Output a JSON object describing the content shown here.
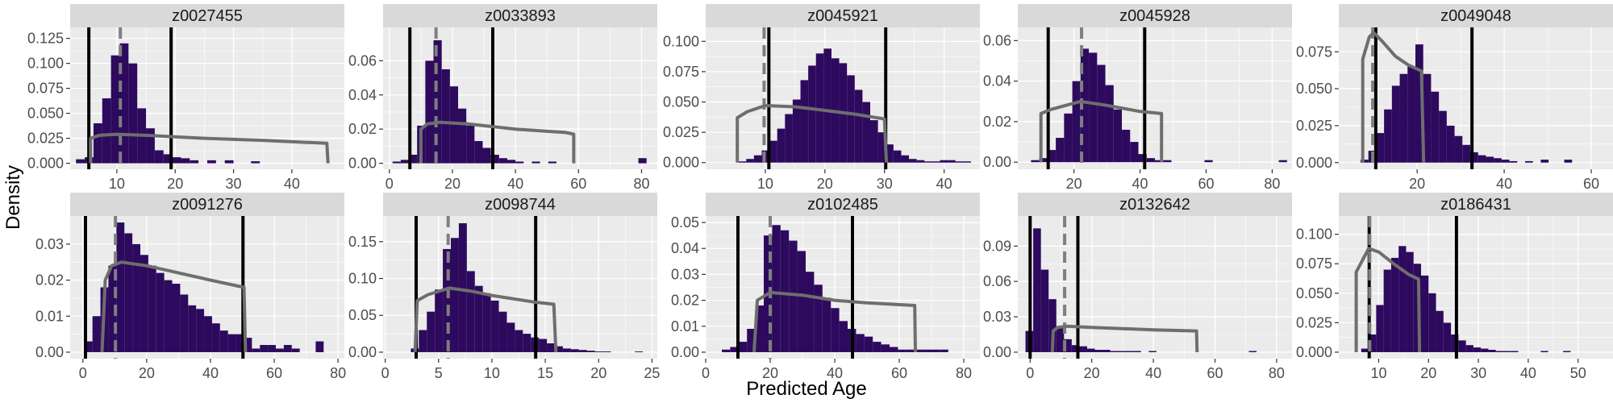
{
  "figure": {
    "ylabel": "Density",
    "xlabel": "Predicted Age",
    "colors": {
      "panel_bg": "#ebebeb",
      "strip_bg": "#d9d9d9",
      "grid": "#ffffff",
      "bars": "#2d0a5e",
      "ci_lines": "#000000",
      "prior_curve": "#6e6e6e",
      "median_line": "#7f7f7f"
    }
  },
  "chart_data": [
    {
      "type": "histogram",
      "title": "z0027455",
      "xlim": [
        2,
        49
      ],
      "ylim": [
        -0.006,
        0.136
      ],
      "xticks": [
        10,
        20,
        30,
        40
      ],
      "yticks": [
        0,
        0.025,
        0.05,
        0.075,
        0.1,
        0.125
      ],
      "ytick_labels": [
        "0.000",
        "0.025",
        "0.050",
        "0.075",
        "0.100",
        "0.125"
      ],
      "bins_start": 3,
      "bin_width": 1.5,
      "values": [
        0.004,
        0.006,
        0.04,
        0.065,
        0.108,
        0.12,
        0.1,
        0.055,
        0.035,
        0.013,
        0.009,
        0.006,
        0.005,
        0.003,
        0,
        0.003,
        0,
        0.003,
        0,
        0,
        0.002,
        0,
        0,
        0,
        0,
        0,
        0,
        0,
        0
      ],
      "ci_lines": [
        5.2,
        19.3
      ],
      "median_line": 10.6,
      "prior_curve": [
        [
          5.5,
          0
        ],
        [
          5.5,
          0.025
        ],
        [
          7,
          0.028
        ],
        [
          10,
          0.029
        ],
        [
          15,
          0.028
        ],
        [
          25,
          0.025
        ],
        [
          35,
          0.023
        ],
        [
          46,
          0.02
        ],
        [
          46.2,
          0
        ]
      ]
    },
    {
      "type": "histogram",
      "title": "z0033893",
      "xlim": [
        -2,
        85
      ],
      "ylim": [
        -0.0035,
        0.0795
      ],
      "xticks": [
        0,
        20,
        40,
        60,
        80
      ],
      "yticks": [
        0,
        0.02,
        0.04,
        0.06
      ],
      "ytick_labels": [
        "0.00",
        "0.02",
        "0.04",
        "0.06"
      ],
      "bins_start": 1,
      "bin_width": 2.6,
      "values": [
        0.001,
        0.002,
        0.005,
        0.022,
        0.06,
        0.072,
        0.055,
        0.045,
        0.032,
        0.022,
        0.013,
        0.009,
        0.005,
        0.003,
        0.002,
        0.001,
        0,
        0.001,
        0,
        0.001,
        0,
        0,
        0,
        0,
        0,
        0,
        0,
        0,
        0,
        0,
        0.003
      ],
      "ci_lines": [
        6.5,
        32.8
      ],
      "median_line": 14.8,
      "prior_curve": [
        [
          10,
          0
        ],
        [
          10,
          0.02
        ],
        [
          12,
          0.023
        ],
        [
          16,
          0.024
        ],
        [
          25,
          0.023
        ],
        [
          40,
          0.02
        ],
        [
          56,
          0.018
        ],
        [
          58.5,
          0.017
        ],
        [
          58.5,
          0
        ]
      ]
    },
    {
      "type": "histogram",
      "title": "z0045921",
      "xlim": [
        0,
        46
      ],
      "ylim": [
        -0.0055,
        0.1115
      ],
      "xticks": [
        10,
        20,
        30,
        40
      ],
      "yticks": [
        0,
        0.025,
        0.05,
        0.075,
        0.1
      ],
      "ytick_labels": [
        "0.000",
        "0.025",
        "0.050",
        "0.075",
        "0.100"
      ],
      "bins_start": 5.5,
      "bin_width": 1.3,
      "values": [
        0.001,
        0.003,
        0.006,
        0.01,
        0.018,
        0.028,
        0.04,
        0.052,
        0.068,
        0.08,
        0.09,
        0.094,
        0.086,
        0.082,
        0.072,
        0.06,
        0.05,
        0.035,
        0.025,
        0.015,
        0.01,
        0.006,
        0.003,
        0.002,
        0.001,
        0.001,
        0.002,
        0.002,
        0.001,
        0.001
      ],
      "ci_lines": [
        10.6,
        30.2
      ],
      "median_line": 9.8,
      "prior_curve": [
        [
          5.3,
          0
        ],
        [
          5.3,
          0.037
        ],
        [
          7,
          0.042
        ],
        [
          10,
          0.047
        ],
        [
          15,
          0.046
        ],
        [
          20,
          0.043
        ],
        [
          25,
          0.04
        ],
        [
          30,
          0.036
        ],
        [
          30.3,
          0
        ]
      ]
    },
    {
      "type": "histogram",
      "title": "z0045928",
      "xlim": [
        3,
        86
      ],
      "ylim": [
        -0.0035,
        0.0665
      ],
      "xticks": [
        20,
        40,
        60,
        80
      ],
      "yticks": [
        0,
        0.02,
        0.04,
        0.06
      ],
      "ytick_labels": [
        "0.00",
        "0.02",
        "0.04",
        "0.06"
      ],
      "bins_start": 7,
      "bin_width": 2.5,
      "values": [
        0.001,
        0.002,
        0.006,
        0.012,
        0.024,
        0.04,
        0.056,
        0.054,
        0.048,
        0.038,
        0.026,
        0.016,
        0.01,
        0.004,
        0.002,
        0.001,
        0.001,
        0,
        0,
        0,
        0,
        0.001,
        0,
        0,
        0,
        0,
        0,
        0,
        0,
        0,
        0.001
      ],
      "ci_lines": [
        12.2,
        41.4
      ],
      "median_line": 22.3,
      "prior_curve": [
        [
          10,
          0
        ],
        [
          10,
          0.024
        ],
        [
          13,
          0.026
        ],
        [
          22,
          0.03
        ],
        [
          30,
          0.028
        ],
        [
          40,
          0.025
        ],
        [
          46.5,
          0.024
        ],
        [
          46.5,
          0
        ]
      ]
    },
    {
      "type": "histogram",
      "title": "z0049048",
      "xlim": [
        2,
        65
      ],
      "ylim": [
        -0.0045,
        0.0915
      ],
      "xticks": [
        20,
        40,
        60
      ],
      "yticks": [
        0,
        0.025,
        0.05,
        0.075
      ],
      "ytick_labels": [
        "0.000",
        "0.025",
        "0.050",
        "0.075"
      ],
      "bins_start": 7,
      "bin_width": 1.8,
      "values": [
        0.002,
        0.008,
        0.02,
        0.036,
        0.052,
        0.06,
        0.065,
        0.08,
        0.06,
        0.048,
        0.035,
        0.025,
        0.018,
        0.012,
        0.007,
        0.005,
        0.004,
        0.003,
        0.002,
        0.001,
        0,
        0.001,
        0,
        0.002,
        0,
        0,
        0.002,
        0,
        0
      ],
      "ci_lines": [
        10.5,
        32.6
      ],
      "median_line": 9.8,
      "prior_curve": [
        [
          7.5,
          0
        ],
        [
          7.5,
          0.07
        ],
        [
          9,
          0.085
        ],
        [
          10,
          0.088
        ],
        [
          12,
          0.082
        ],
        [
          15,
          0.072
        ],
        [
          18,
          0.066
        ],
        [
          21,
          0.062
        ],
        [
          21.5,
          0
        ]
      ]
    },
    {
      "type": "histogram",
      "title": "z0091276",
      "xlim": [
        -4,
        82
      ],
      "ylim": [
        -0.0018,
        0.0378
      ],
      "xticks": [
        0,
        20,
        40,
        60,
        80
      ],
      "yticks": [
        0,
        0.01,
        0.02,
        0.03
      ],
      "ytick_labels": [
        "0.00",
        "0.01",
        "0.02",
        "0.03"
      ],
      "bins_start": 0.5,
      "bin_width": 2.5,
      "values": [
        0.003,
        0.01,
        0.018,
        0.024,
        0.036,
        0.033,
        0.03,
        0.027,
        0.024,
        0.022,
        0.02,
        0.019,
        0.016,
        0.013,
        0.012,
        0.01,
        0.008,
        0.006,
        0.005,
        0.005,
        0.004,
        0.001,
        0.002,
        0.002,
        0.001,
        0.002,
        0.001,
        0,
        0,
        0.003
      ],
      "ci_lines": [
        0.8,
        50.2
      ],
      "median_line": 10.2,
      "prior_curve": [
        [
          6,
          0
        ],
        [
          7,
          0.02
        ],
        [
          9,
          0.024
        ],
        [
          12,
          0.025
        ],
        [
          20,
          0.024
        ],
        [
          30,
          0.022
        ],
        [
          40,
          0.02
        ],
        [
          50.5,
          0.018
        ],
        [
          51,
          0
        ]
      ]
    },
    {
      "type": "histogram",
      "title": "z0098744",
      "xlim": [
        -0.2,
        25.5
      ],
      "ylim": [
        -0.0088,
        0.1848
      ],
      "xticks": [
        0,
        5,
        10,
        15,
        20,
        25
      ],
      "yticks": [
        0,
        0.05,
        0.1,
        0.15
      ],
      "ytick_labels": [
        "0.00",
        "0.05",
        "0.10",
        "0.15"
      ],
      "bins_start": 2.4,
      "bin_width": 0.75,
      "values": [
        0.005,
        0.03,
        0.055,
        0.085,
        0.14,
        0.155,
        0.175,
        0.11,
        0.09,
        0.08,
        0.07,
        0.055,
        0.04,
        0.03,
        0.025,
        0.02,
        0.018,
        0.012,
        0.008,
        0.005,
        0.004,
        0.003,
        0.002,
        0.001,
        0.001,
        0,
        0,
        0,
        0.001
      ],
      "ci_lines": [
        2.9,
        14.1
      ],
      "median_line": 5.9,
      "prior_curve": [
        [
          2.8,
          0
        ],
        [
          3,
          0.07
        ],
        [
          4,
          0.078
        ],
        [
          6,
          0.087
        ],
        [
          8,
          0.083
        ],
        [
          10,
          0.077
        ],
        [
          14,
          0.068
        ],
        [
          15.8,
          0.065
        ],
        [
          16,
          0
        ]
      ]
    },
    {
      "type": "histogram",
      "title": "z0102485",
      "xlim": [
        0,
        85
      ],
      "ylim": [
        -0.0025,
        0.0525
      ],
      "xticks": [
        0,
        20,
        40,
        60,
        80
      ],
      "yticks": [
        0,
        0.01,
        0.02,
        0.03,
        0.04,
        0.05
      ],
      "ytick_labels": [
        "0.00",
        "0.01",
        "0.02",
        "0.03",
        "0.04",
        "0.05"
      ],
      "bins_start": 5,
      "bin_width": 2.6,
      "values": [
        0.001,
        0.002,
        0.004,
        0.009,
        0.018,
        0.045,
        0.049,
        0.047,
        0.043,
        0.039,
        0.031,
        0.026,
        0.021,
        0.017,
        0.012,
        0.009,
        0.007,
        0.006,
        0.004,
        0.003,
        0.002,
        0.001,
        0.001,
        0.001,
        0.001,
        0.001,
        0.001,
        0,
        0,
        0
      ],
      "ci_lines": [
        10,
        45.5
      ],
      "median_line": 20,
      "prior_curve": [
        [
          15,
          0
        ],
        [
          16,
          0.02
        ],
        [
          20,
          0.023
        ],
        [
          30,
          0.022
        ],
        [
          40,
          0.02
        ],
        [
          50,
          0.019
        ],
        [
          64.8,
          0.018
        ],
        [
          65,
          0
        ]
      ]
    },
    {
      "type": "histogram",
      "title": "z0132642",
      "xlim": [
        -4,
        85
      ],
      "ylim": [
        -0.0055,
        0.1155
      ],
      "xticks": [
        0,
        20,
        40,
        60,
        80
      ],
      "yticks": [
        0,
        0.03,
        0.06,
        0.09
      ],
      "ytick_labels": [
        "0.00",
        "0.03",
        "0.06",
        "0.09"
      ],
      "bins_start": -1.5,
      "bin_width": 2.5,
      "values": [
        0.018,
        0.105,
        0.07,
        0.045,
        0.022,
        0.011,
        0.006,
        0.005,
        0.003,
        0.002,
        0.002,
        0.001,
        0.001,
        0.001,
        0.001,
        0,
        0.001,
        0,
        0,
        0,
        0,
        0,
        0,
        0,
        0,
        0,
        0,
        0,
        0,
        0.001
      ],
      "ci_lines": [
        0,
        15.5
      ],
      "median_line": 11.2,
      "prior_curve": [
        [
          7.2,
          0
        ],
        [
          7.5,
          0.018
        ],
        [
          9,
          0.021
        ],
        [
          12,
          0.022
        ],
        [
          20,
          0.021
        ],
        [
          30,
          0.02
        ],
        [
          40,
          0.019
        ],
        [
          54,
          0.018
        ],
        [
          54.2,
          0
        ]
      ]
    },
    {
      "type": "histogram",
      "title": "z0186431",
      "xlim": [
        2,
        57
      ],
      "ylim": [
        -0.0055,
        0.1155
      ],
      "xticks": [
        10,
        20,
        30,
        40,
        50
      ],
      "yticks": [
        0,
        0.025,
        0.05,
        0.075,
        0.1
      ],
      "ytick_labels": [
        "0.000",
        "0.025",
        "0.050",
        "0.075",
        "0.100"
      ],
      "bins_start": 6.5,
      "bin_width": 1.5,
      "values": [
        0.003,
        0.015,
        0.04,
        0.07,
        0.08,
        0.09,
        0.085,
        0.075,
        0.065,
        0.05,
        0.035,
        0.025,
        0.015,
        0.01,
        0.006,
        0.004,
        0.003,
        0.002,
        0.001,
        0.001,
        0.001,
        0,
        0,
        0,
        0.001,
        0,
        0,
        0.001,
        0,
        0
      ],
      "ci_lines": [
        8.1,
        25.6
      ],
      "median_line": 8.2,
      "prior_curve": [
        [
          5.5,
          0
        ],
        [
          5.5,
          0.068
        ],
        [
          7,
          0.08
        ],
        [
          8,
          0.088
        ],
        [
          10,
          0.085
        ],
        [
          13,
          0.075
        ],
        [
          16,
          0.066
        ],
        [
          18,
          0.062
        ],
        [
          18.2,
          0
        ]
      ]
    }
  ]
}
